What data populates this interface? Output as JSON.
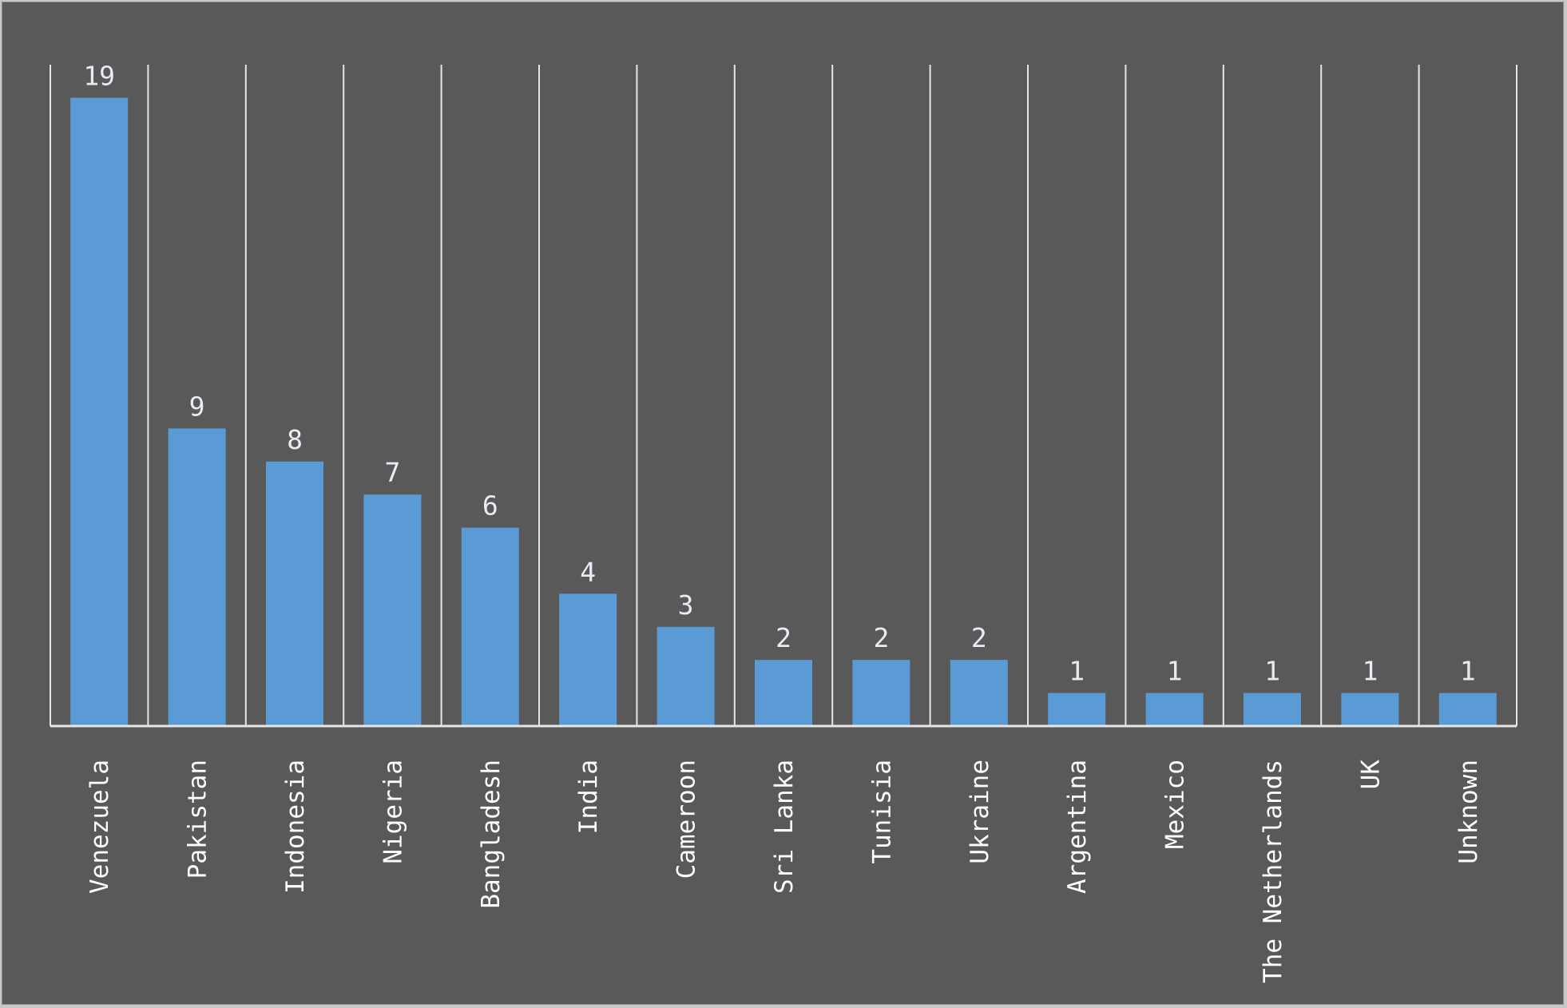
{
  "chart_data": {
    "type": "bar",
    "categories": [
      "Venezuela",
      "Pakistan",
      "Indonesia",
      "Nigeria",
      "Bangladesh",
      "India",
      "Cameroon",
      "Sri Lanka",
      "Tunisia",
      "Ukraine",
      "Argentina",
      "Mexico",
      "The Netherlands",
      "UK",
      "Unknown"
    ],
    "values": [
      19,
      9,
      8,
      7,
      6,
      4,
      3,
      2,
      2,
      2,
      1,
      1,
      1,
      1,
      1
    ],
    "title": "",
    "xlabel": "",
    "ylabel": "",
    "ylim": [
      0,
      20
    ],
    "grid": "vertical separators between categories",
    "legend": "none",
    "data_labels": true
  },
  "colors": {
    "background": "#595959",
    "bar": "#5b9bd5",
    "axis": "#e6e6e6",
    "label_text": "#ffffff"
  }
}
